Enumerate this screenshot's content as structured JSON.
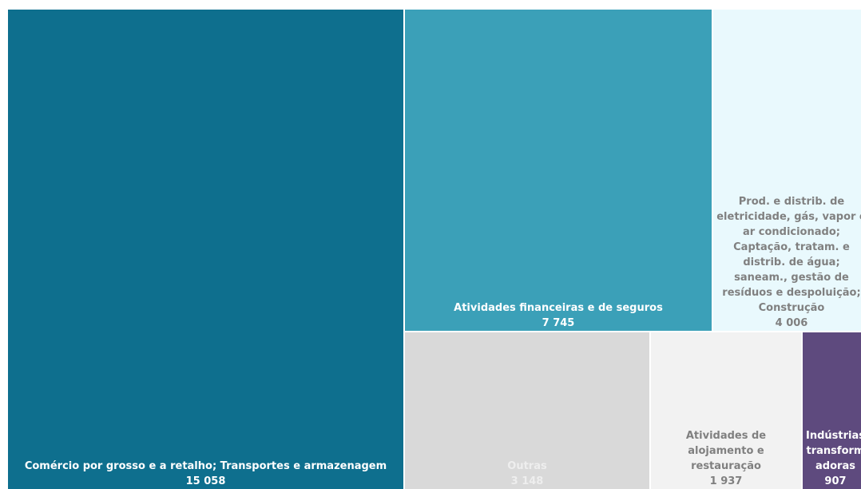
{
  "chart_data": {
    "type": "treemap",
    "categories": [
      "Comércio por grosso e a retalho; Transportes e armazenagem",
      "Atividades financeiras e de seguros",
      "Prod. e distrib. de eletricidade, gás, vapor e ar condicionado; Captação, tratam. e distrib. de água; saneam., gestão de resíduos e despoluição; Construção",
      "Outras",
      "Atividades de alojamento e restauração",
      "Indústrias transformadoras"
    ],
    "values": [
      15058,
      7745,
      4006,
      3148,
      1937,
      907
    ],
    "value_labels": [
      "15 058",
      "7 745",
      "4 006",
      "3 148",
      "1 937",
      "907"
    ],
    "colors": [
      "#0e6f8e",
      "#3ba0b8",
      "#e9f9fd",
      "#d9d9d9",
      "#f2f2f2",
      "#5e4a7e"
    ],
    "label_colors": [
      "#ffffff",
      "#ffffff",
      "#808080",
      "#eeeeee",
      "#808080",
      "#ffffff"
    ]
  }
}
